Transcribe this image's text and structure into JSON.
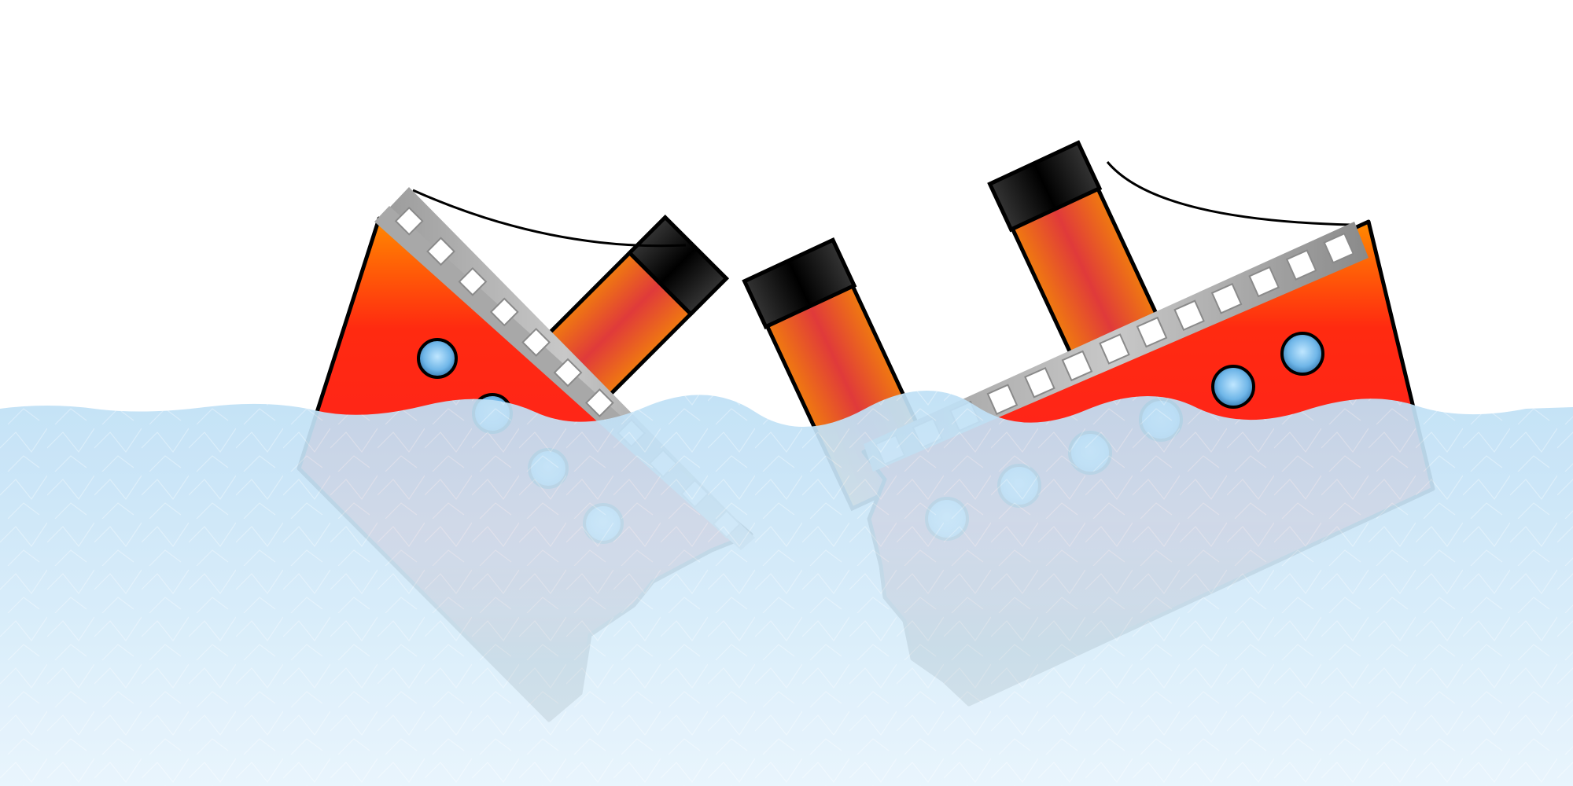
{
  "scene": {
    "subject": "broken-ship-sinking",
    "colors": {
      "sky": "#ffffff",
      "water_top": "#bfe0f6",
      "water_bottom": "#e6f4fd",
      "hull_red": "#ff2020",
      "hull_orange": "#ff8a00",
      "hull_black": "#000000",
      "porthole_light": "#a9dcff",
      "porthole_dark": "#3a8fd0",
      "rail_gray": "#9a9a9a",
      "rail_light": "#e6e6e6",
      "funnel_red": "#e23a3a",
      "funnel_orange": "#f06a10",
      "funnel_cap": "#1a1a1a",
      "outline": "#000000"
    },
    "icons": {
      "bow_section": "ship-bow-icon",
      "stern_section": "ship-stern-icon",
      "funnel": "funnel-icon",
      "porthole": "porthole-icon"
    },
    "counts": {
      "bow_portholes": 4,
      "stern_portholes": 6,
      "stern_funnels": 2,
      "bow_funnels": 1
    }
  }
}
